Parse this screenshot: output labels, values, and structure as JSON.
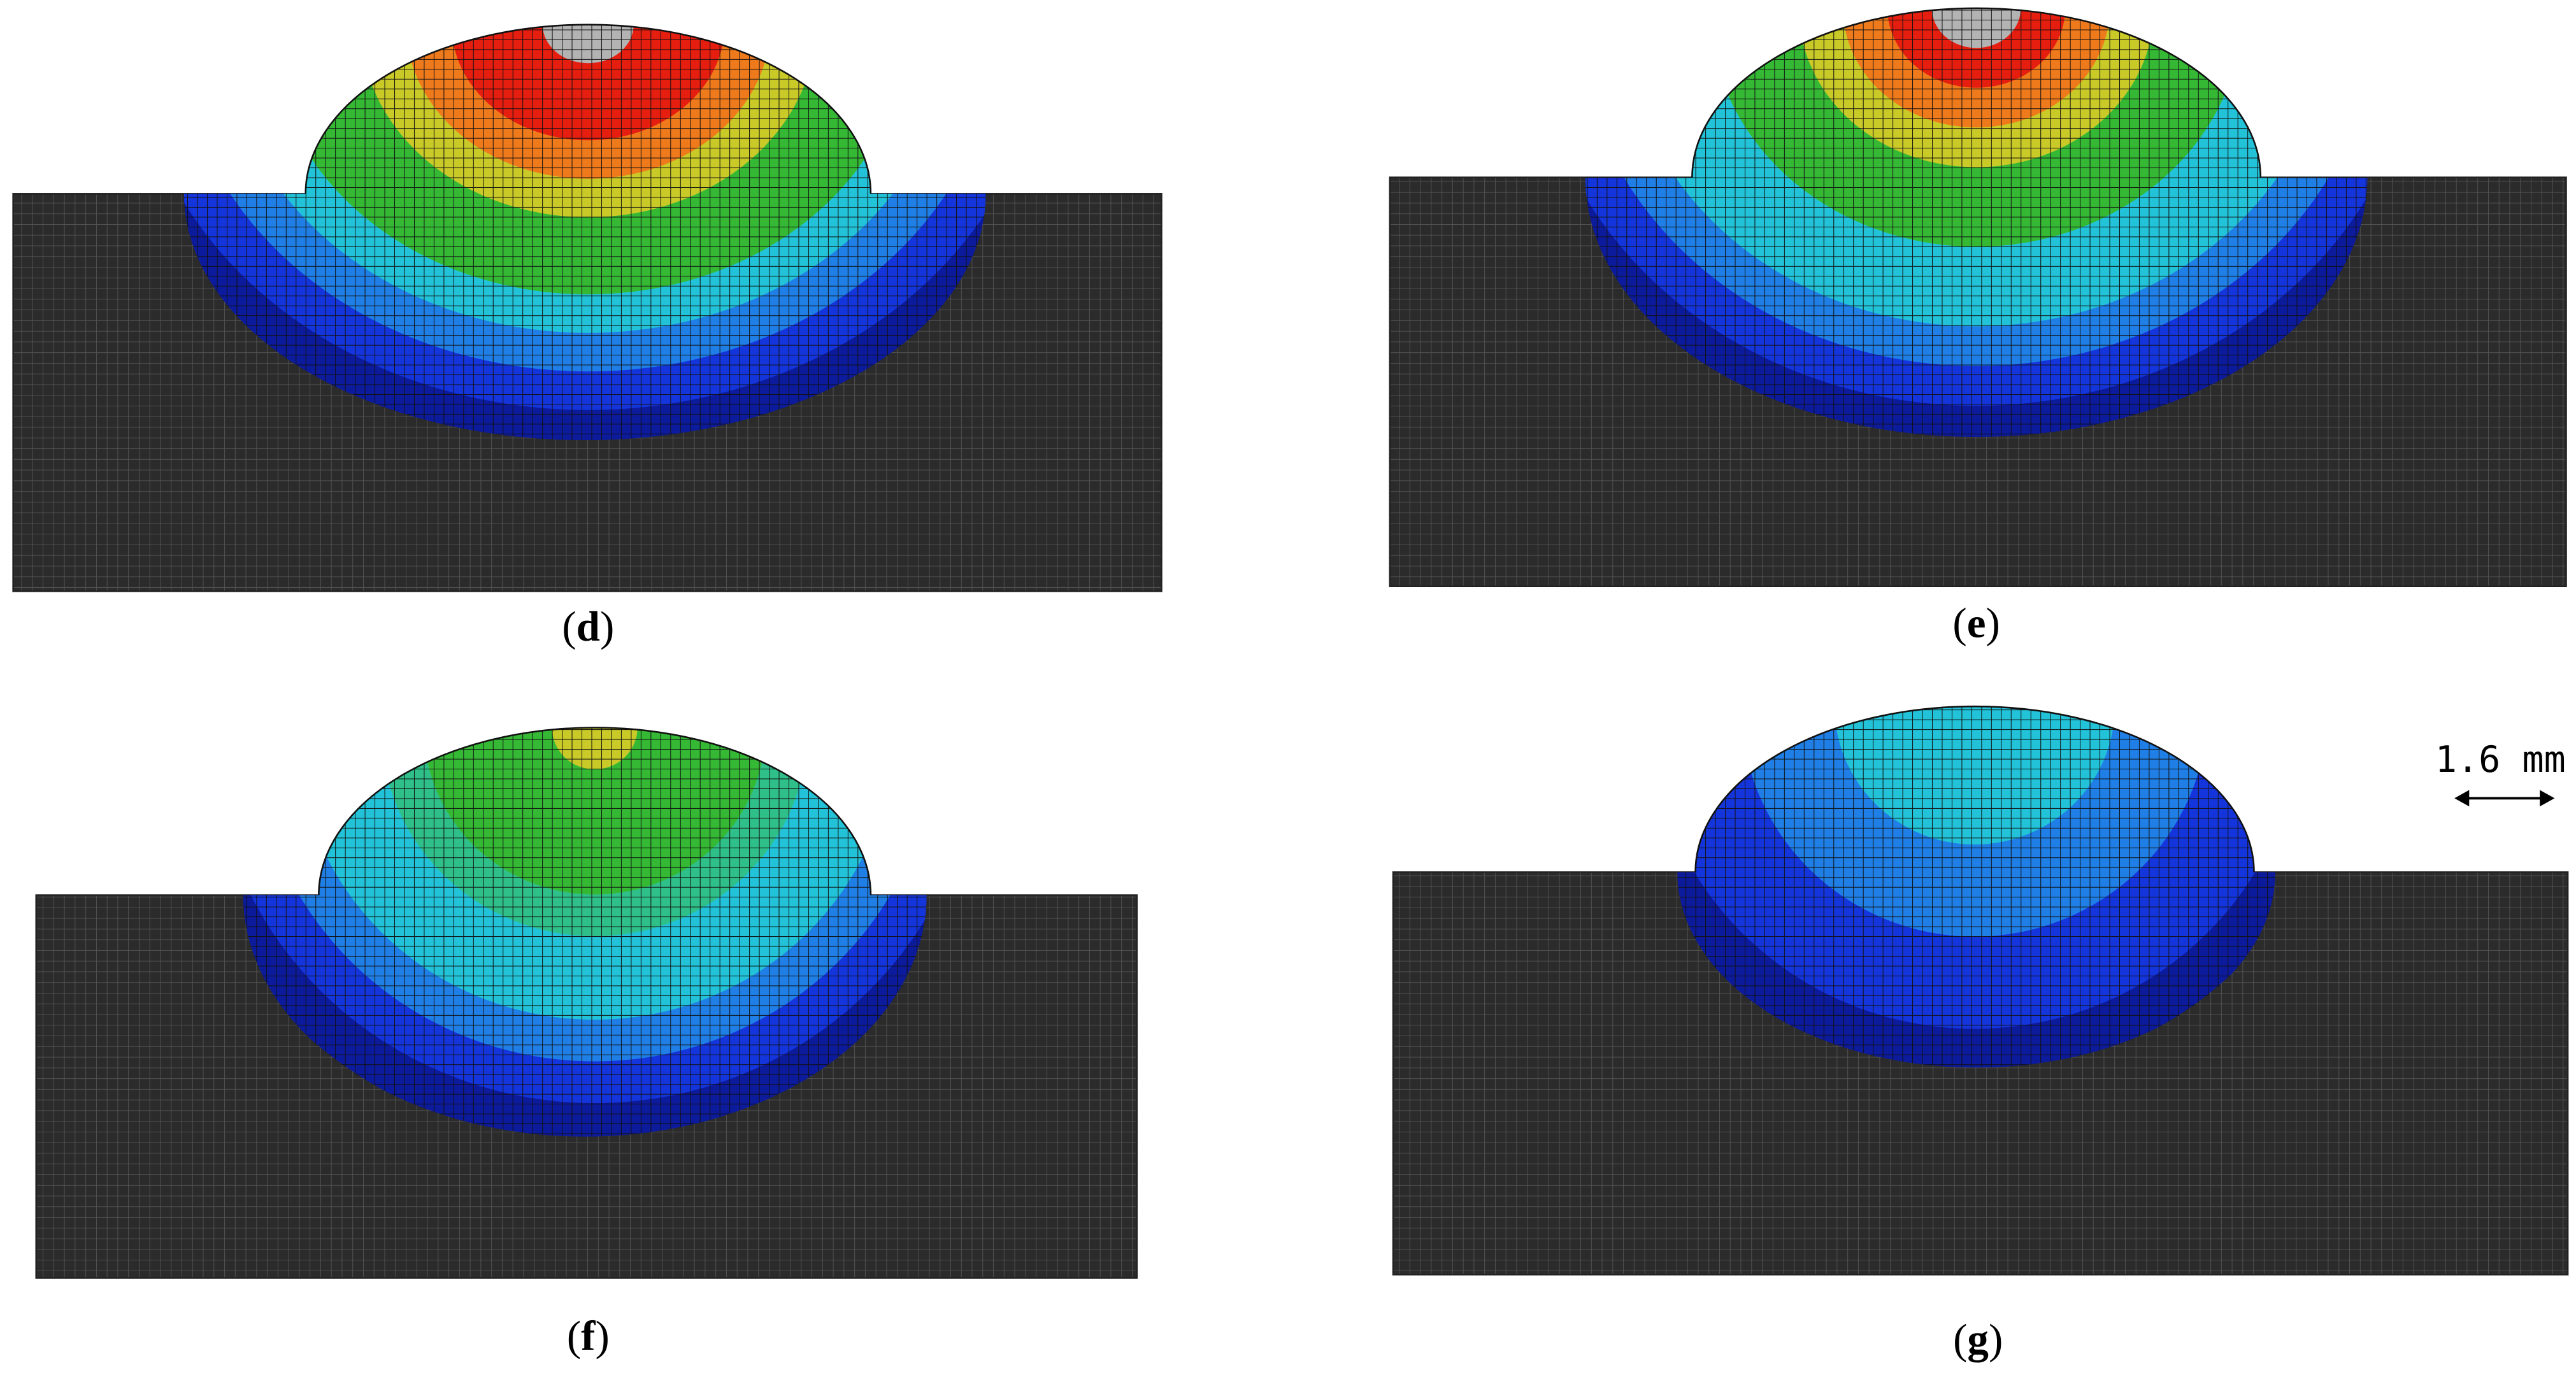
{
  "panels": [
    {
      "label": {
        "open": "(",
        "letter": "d",
        "close": ")"
      }
    },
    {
      "label": {
        "open": "(",
        "letter": "e",
        "close": ")"
      }
    },
    {
      "label": {
        "open": "(",
        "letter": "f",
        "close": ")"
      }
    },
    {
      "label": {
        "open": "(",
        "letter": "g",
        "close": ")"
      }
    }
  ],
  "scale_bar": {
    "label": "1.6 mm"
  }
}
